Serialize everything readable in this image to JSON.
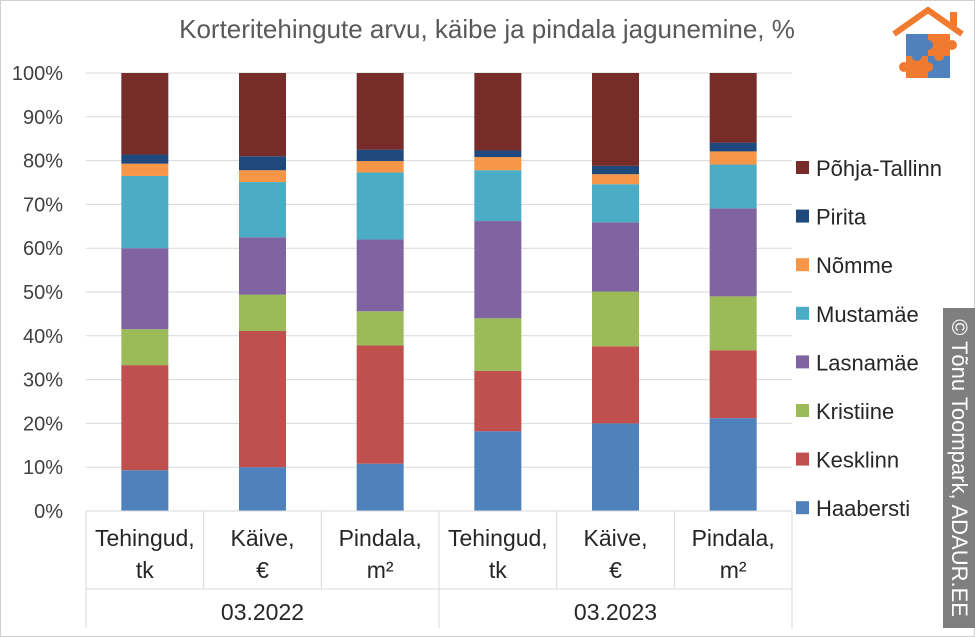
{
  "chart_data": {
    "type": "bar",
    "stacked": true,
    "title": "Korteritehingute arvu, käibe ja pindala jagunemine, %",
    "categories": [
      "Tehingud, tk",
      "Käive, €",
      "Pindala, m²",
      "Tehingud, tk",
      "Käive, €",
      "Pindala, m²"
    ],
    "groups": [
      {
        "label": "03.2022",
        "categories": [
          0,
          1,
          2
        ]
      },
      {
        "label": "03.2023",
        "categories": [
          3,
          4,
          5
        ]
      }
    ],
    "ylim": [
      0,
      100
    ],
    "yticks": [
      "0%",
      "10%",
      "20%",
      "30%",
      "40%",
      "50%",
      "60%",
      "70%",
      "80%",
      "90%",
      "100%"
    ],
    "grid": true,
    "legend_position": "right",
    "series": [
      {
        "name": "Haabersti",
        "color": "#4f81bd",
        "values": [
          9.3,
          10.0,
          10.8,
          18.2,
          20.0,
          21.2
        ]
      },
      {
        "name": "Kesklinn",
        "color": "#c0504d",
        "values": [
          24.0,
          31.1,
          27.0,
          13.8,
          17.6,
          15.5
        ]
      },
      {
        "name": "Kristiine",
        "color": "#9bbb59",
        "values": [
          8.2,
          8.3,
          7.8,
          12.0,
          12.5,
          12.3
        ]
      },
      {
        "name": "Lasnamäe",
        "color": "#8064a2",
        "values": [
          18.5,
          13.1,
          16.4,
          22.2,
          15.8,
          20.1
        ]
      },
      {
        "name": "Mustamäe",
        "color": "#4bacc6",
        "values": [
          16.5,
          12.6,
          15.3,
          11.6,
          8.7,
          10.0
        ]
      },
      {
        "name": "Nõmme",
        "color": "#f79646",
        "values": [
          2.8,
          2.7,
          2.6,
          3.0,
          2.3,
          3.0
        ]
      },
      {
        "name": "Pirita",
        "color": "#1f497d",
        "values": [
          2.1,
          3.2,
          2.6,
          1.5,
          1.9,
          2.0
        ]
      },
      {
        "name": "Põhja-Tallinn",
        "color": "#772c2a",
        "values": [
          18.6,
          19.0,
          17.5,
          17.7,
          21.2,
          15.9
        ]
      }
    ]
  },
  "credit": "© Tõnu Toompark, ADAUR.EE"
}
